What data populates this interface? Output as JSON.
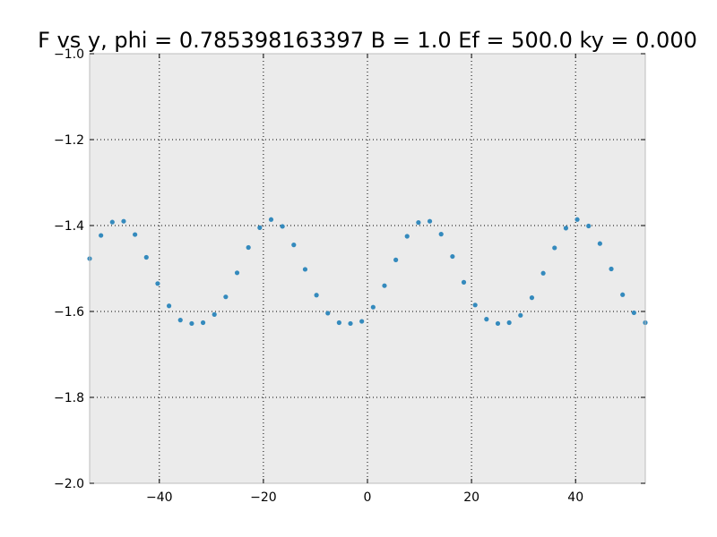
{
  "chart_data": {
    "type": "scatter",
    "title": "F vs y, phi = 0.785398163397 B = 1.0 Ef = 500.0 ky = 0.000",
    "xlabel": "",
    "ylabel": "",
    "xlim": [
      -53.4,
      53.4
    ],
    "ylim": [
      -2.0,
      -1.0
    ],
    "xticks": [
      -40,
      -20,
      0,
      20,
      40
    ],
    "xtick_labels": [
      "−40",
      "−20",
      "0",
      "20",
      "40"
    ],
    "yticks": [
      -1.0,
      -1.2,
      -1.4,
      -1.6,
      -1.8,
      -2.0
    ],
    "ytick_labels": [
      "−1.0",
      "−1.2",
      "−1.4",
      "−1.6",
      "−1.8",
      "−2.0"
    ],
    "grid": true,
    "background_color": "#ebebeb",
    "marker_color": "#348abd",
    "series": [
      {
        "x": [
          -53.4,
          -51.22,
          -49.04,
          -46.86,
          -44.68,
          -42.5,
          -40.32,
          -38.14,
          -35.96,
          -33.78,
          -31.6,
          -29.42,
          -27.24,
          -25.06,
          -22.88,
          -20.7,
          -18.52,
          -16.34,
          -14.16,
          -11.98,
          -9.8,
          -7.62,
          -5.45,
          -3.27,
          -1.09,
          1.09,
          3.27,
          5.45,
          7.62,
          9.8,
          11.98,
          14.16,
          16.34,
          18.52,
          20.7,
          22.88,
          25.06,
          27.24,
          29.42,
          31.6,
          33.78,
          35.96,
          38.14,
          40.32,
          42.5,
          44.68,
          46.86,
          49.04,
          51.22,
          53.4
        ],
        "y": [
          -1.477,
          -1.423,
          -1.392,
          -1.39,
          -1.421,
          -1.474,
          -1.535,
          -1.587,
          -1.62,
          -1.628,
          -1.626,
          -1.607,
          -1.566,
          -1.51,
          -1.451,
          -1.405,
          -1.386,
          -1.402,
          -1.445,
          -1.502,
          -1.562,
          -1.604,
          -1.626,
          -1.628,
          -1.623,
          -1.59,
          -1.54,
          -1.48,
          -1.425,
          -1.393,
          -1.39,
          -1.42,
          -1.472,
          -1.532,
          -1.585,
          -1.618,
          -1.628,
          -1.626,
          -1.609,
          -1.568,
          -1.511,
          -1.452,
          -1.406,
          -1.386,
          -1.401,
          -1.442,
          -1.501,
          -1.561,
          -1.603,
          -1.626
        ]
      }
    ]
  }
}
